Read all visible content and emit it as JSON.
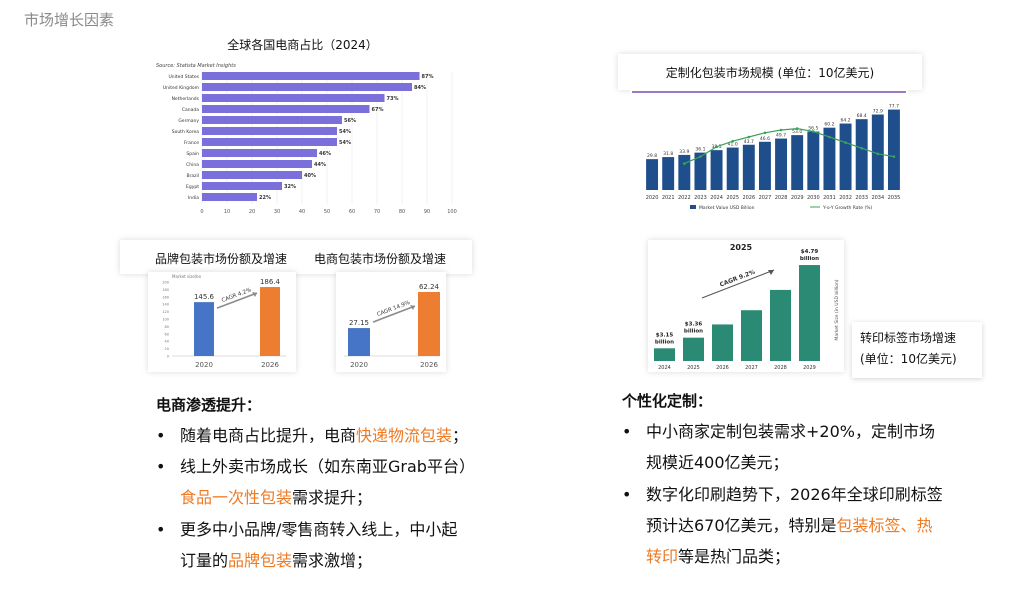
{
  "page": {
    "subtitle": "市场增长因素"
  },
  "colors": {
    "accent_orange": "#ee7a22",
    "bar_purple": "#7b6fdc",
    "navy": "#1f4e8c",
    "teal": "#2a8a73",
    "brand_blue": "#4674c6",
    "brand_orange": "#ed7d31",
    "green_line": "#3aa35a"
  },
  "labels": {
    "ecommerce_title": "全球各国电商占比（2024）",
    "custom_title": "定制化包装市场规模 (单位：10亿美元)",
    "brand_title": "品牌包装市场份额及增速",
    "ecpkg_title": "电商包装市场份额及增速",
    "transfer_line1": "转印标签市场增速",
    "transfer_line2": "(单位：10亿美元)"
  },
  "left_section": {
    "heading": "电商渗透提升：",
    "bullets": [
      {
        "parts": [
          "随着电商占比提升，电商",
          "快递物流包装",
          "；"
        ]
      },
      {
        "parts": [
          "线上外卖市场成长（如东南亚Grab平台）"
        ]
      },
      {
        "parts": [
          "",
          "食品一次性包装",
          "需求提升；"
        ]
      },
      {
        "parts": [
          "更多中小品牌/零售商转入线上，中小起"
        ]
      },
      {
        "parts": [
          "订量的",
          "品牌包装",
          "需求激增；"
        ]
      }
    ]
  },
  "right_section": {
    "heading": "个性化定制：",
    "bullets": [
      {
        "parts": [
          "中小商家定制包装需求+20%，定制市场"
        ]
      },
      {
        "parts": [
          "规模近400亿美元；"
        ]
      },
      {
        "parts": [
          "数字化印刷趋势下，2026年全球印刷标签"
        ]
      },
      {
        "parts": [
          "预计达670亿美元，特别是",
          "包装标签、热"
        ]
      },
      {
        "parts": [
          "",
          "转印",
          "等是热门品类；"
        ]
      }
    ]
  },
  "chart_data": [
    {
      "type": "bar",
      "orientation": "horizontal",
      "title": "全球各国电商占比（2024）",
      "source": "Source: Statista Market Insights",
      "categories": [
        "United States",
        "United Kingdom",
        "Netherlands",
        "Canada",
        "Germany",
        "South Korea",
        "France",
        "Spain",
        "China",
        "Brazil",
        "Egypt",
        "India"
      ],
      "values": [
        87,
        84,
        73,
        67,
        56,
        54,
        54,
        46,
        44,
        40,
        32,
        22
      ],
      "value_labels": [
        "87%",
        "84%",
        "73%",
        "67%",
        "56%",
        "54%",
        "54%",
        "46%",
        "44%",
        "40%",
        "32%",
        "22%"
      ],
      "xlim": [
        0,
        100
      ],
      "xticks": [
        "0",
        "10",
        "20",
        "30",
        "40",
        "50",
        "60",
        "70",
        "80",
        "90",
        "100"
      ],
      "color": "#7b6fdc"
    },
    {
      "type": "bar",
      "title": "定制化包装市场规模 (单位：10亿美元)",
      "categories": [
        "2020",
        "2021",
        "2022",
        "2023",
        "2024",
        "2025",
        "2026",
        "2027",
        "2028",
        "2029",
        "2030",
        "2031",
        "2032",
        "2033",
        "2034",
        "2035"
      ],
      "series": [
        {
          "name": "Market Value USD Billion",
          "values": [
            29.8,
            31.8,
            33.9,
            36.1,
            38.5,
            41.0,
            43.7,
            46.6,
            49.7,
            53.0,
            56.5,
            60.2,
            64.2,
            68.4,
            72.9,
            77.7
          ]
        },
        {
          "name": "Y-o-Y Growth Rate (%)",
          "type": "line",
          "values": [
            null,
            null,
            5.1,
            5.6,
            6.3,
            6.7,
            7.0,
            7.3,
            7.5,
            7.6,
            7.4,
            7.0,
            6.6,
            6.2,
            5.8,
            5.6
          ]
        }
      ],
      "ylim": [
        0,
        85
      ],
      "color": "#1f4e8c",
      "line_color": "#3aa35a"
    },
    {
      "type": "bar",
      "title": "品牌包装市场份额及增速",
      "header": "Market size/bn",
      "categories": [
        "2020",
        "2026"
      ],
      "values": [
        145.6,
        186.4
      ],
      "annotation": "CAGR 4.2%",
      "colors": [
        "#4674c6",
        "#ed7d31"
      ],
      "ylim": [
        0,
        200
      ],
      "yticks": [
        "0",
        "20",
        "40",
        "60",
        "80",
        "100",
        "120",
        "140",
        "160",
        "180",
        "200"
      ]
    },
    {
      "type": "bar",
      "title": "电商包装市场份额及增速",
      "categories": [
        "2020",
        "2026"
      ],
      "values": [
        27.15,
        62.24
      ],
      "annotation": "CAGR 14.9%",
      "colors": [
        "#4674c6",
        "#ed7d31"
      ],
      "ylim": [
        0,
        70
      ]
    },
    {
      "type": "bar",
      "title": "2025",
      "categories": [
        "2024",
        "2025",
        "2026",
        "2027",
        "2028",
        "2029"
      ],
      "values": [
        3.15,
        3.36,
        3.62,
        3.9,
        4.3,
        4.79
      ],
      "value_labels": [
        "$3.15 billion",
        "$3.36 billion",
        "",
        "",
        "",
        "$4.79 billion"
      ],
      "annotation": "CAGR 9.2%",
      "ylabel": "Market Size (in USD billion)",
      "ylim": [
        2.9,
        4.85
      ],
      "color": "#2a8a73"
    }
  ]
}
